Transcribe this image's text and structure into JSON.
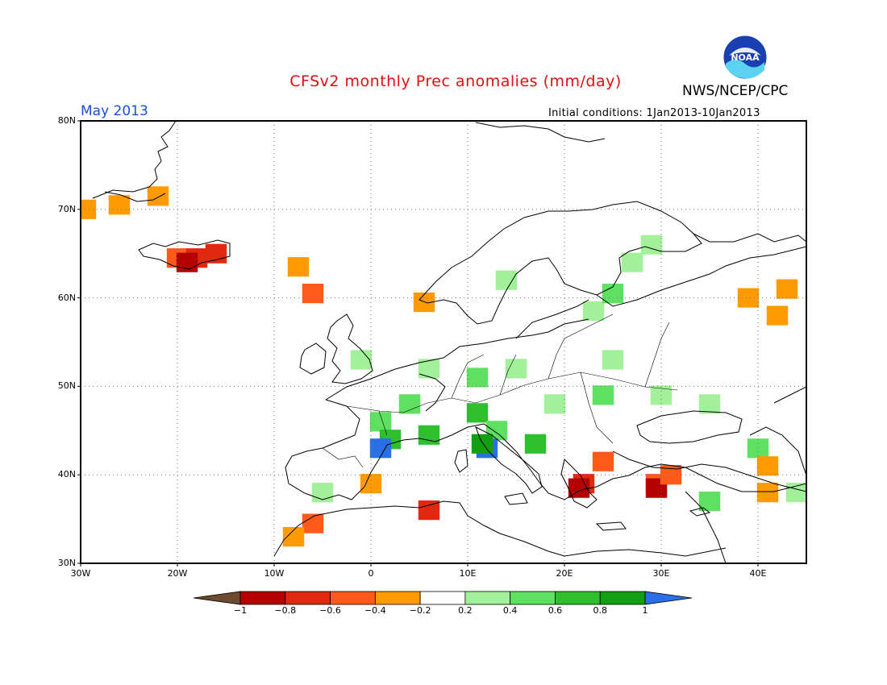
{
  "header": {
    "title": "CFSv2 monthly Prec anomalies (mm/day)",
    "organization": "NWS/NCEP/CPC",
    "month": "May 2013",
    "initial_conditions": "Initial conditions: 1Jan2013-10Jan2013",
    "logo_text": "NOAA"
  },
  "axes": {
    "lat_labels": [
      "80N",
      "70N",
      "60N",
      "50N",
      "40N",
      "30N"
    ],
    "lon_labels": [
      "30W",
      "20W",
      "10W",
      "0",
      "10E",
      "20E",
      "30E",
      "40E"
    ],
    "lat_range": [
      30,
      80
    ],
    "lon_range": [
      -30,
      45
    ],
    "gridlines": "dotted"
  },
  "colorbar": {
    "labels": [
      "-1",
      "-0.8",
      "-0.6",
      "-0.4",
      "-0.2",
      "0.2",
      "0.4",
      "0.6",
      "0.8",
      "1"
    ],
    "colors": [
      "#6e4a2e",
      "#b40000",
      "#e02a10",
      "#ff5a1a",
      "#ff9a00",
      "#ffffff",
      "#a3f09a",
      "#5ee060",
      "#2ebe2e",
      "#139e13",
      "#2a6ee8"
    ]
  },
  "anomaly_cells": [
    {
      "lat": 70,
      "lon": -29.5,
      "value": -0.4
    },
    {
      "lat": 71.5,
      "lon": -22,
      "value": -0.4
    },
    {
      "lat": 70.5,
      "lon": -26,
      "value": -0.4
    },
    {
      "lat": 64.5,
      "lon": -20,
      "value": -0.5
    },
    {
      "lat": 64.5,
      "lon": -18,
      "value": -0.7
    },
    {
      "lat": 65,
      "lon": -16,
      "value": -0.8
    },
    {
      "lat": 64,
      "lon": -19,
      "value": -0.9
    },
    {
      "lat": 63.5,
      "lon": -7.5,
      "value": -0.4
    },
    {
      "lat": 60.5,
      "lon": -6,
      "value": -0.5
    },
    {
      "lat": 59.5,
      "lon": 5.5,
      "value": -0.4
    },
    {
      "lat": 58.5,
      "lon": 23,
      "value": 0.3
    },
    {
      "lat": 62,
      "lon": 14,
      "value": 0.3
    },
    {
      "lat": 64,
      "lon": 27,
      "value": 0.3
    },
    {
      "lat": 66,
      "lon": 29,
      "value": 0.3
    },
    {
      "lat": 60.5,
      "lon": 25,
      "value": 0.4
    },
    {
      "lat": 61,
      "lon": 43,
      "value": -0.4
    },
    {
      "lat": 60,
      "lon": 39,
      "value": -0.4
    },
    {
      "lat": 58,
      "lon": 42,
      "value": -0.4
    },
    {
      "lat": 53,
      "lon": -1,
      "value": 0.3
    },
    {
      "lat": 52,
      "lon": 6,
      "value": 0.3
    },
    {
      "lat": 51,
      "lon": 11,
      "value": 0.4
    },
    {
      "lat": 52,
      "lon": 15,
      "value": 0.3
    },
    {
      "lat": 53,
      "lon": 25,
      "value": 0.3
    },
    {
      "lat": 48,
      "lon": 4,
      "value": 0.4
    },
    {
      "lat": 46,
      "lon": 1,
      "value": 0.5
    },
    {
      "lat": 44,
      "lon": 2,
      "value": 0.6
    },
    {
      "lat": 43,
      "lon": 1,
      "value": 1.0
    },
    {
      "lat": 44.5,
      "lon": 6,
      "value": 0.7
    },
    {
      "lat": 47,
      "lon": 11,
      "value": 0.6
    },
    {
      "lat": 45,
      "lon": 13,
      "value": 0.4
    },
    {
      "lat": 43,
      "lon": 12,
      "value": 1.0
    },
    {
      "lat": 43.5,
      "lon": 11.5,
      "value": 0.8
    },
    {
      "lat": 43.5,
      "lon": 17,
      "value": 0.7
    },
    {
      "lat": 48,
      "lon": 19,
      "value": 0.3
    },
    {
      "lat": 49,
      "lon": 24,
      "value": 0.4
    },
    {
      "lat": 49,
      "lon": 30,
      "value": 0.3
    },
    {
      "lat": 48,
      "lon": 35,
      "value": 0.3
    },
    {
      "lat": 43,
      "lon": 40,
      "value": 0.4
    },
    {
      "lat": 38,
      "lon": -5,
      "value": 0.3
    },
    {
      "lat": 39,
      "lon": 0,
      "value": -0.4
    },
    {
      "lat": 36,
      "lon": 6,
      "value": -0.7
    },
    {
      "lat": 34.5,
      "lon": -6,
      "value": -0.5
    },
    {
      "lat": 33,
      "lon": -8,
      "value": -0.4
    },
    {
      "lat": 39,
      "lon": 22,
      "value": -0.7
    },
    {
      "lat": 38.5,
      "lon": 21.5,
      "value": -0.9
    },
    {
      "lat": 41.5,
      "lon": 24,
      "value": -0.5
    },
    {
      "lat": 39,
      "lon": 29.5,
      "value": -0.6
    },
    {
      "lat": 38.5,
      "lon": 29.5,
      "value": -0.9
    },
    {
      "lat": 40,
      "lon": 31,
      "value": -0.5
    },
    {
      "lat": 37,
      "lon": 35,
      "value": 0.4
    },
    {
      "lat": 38,
      "lon": 41,
      "value": -0.4
    },
    {
      "lat": 41,
      "lon": 41,
      "value": -0.4
    },
    {
      "lat": 38,
      "lon": 44,
      "value": 0.3
    }
  ]
}
